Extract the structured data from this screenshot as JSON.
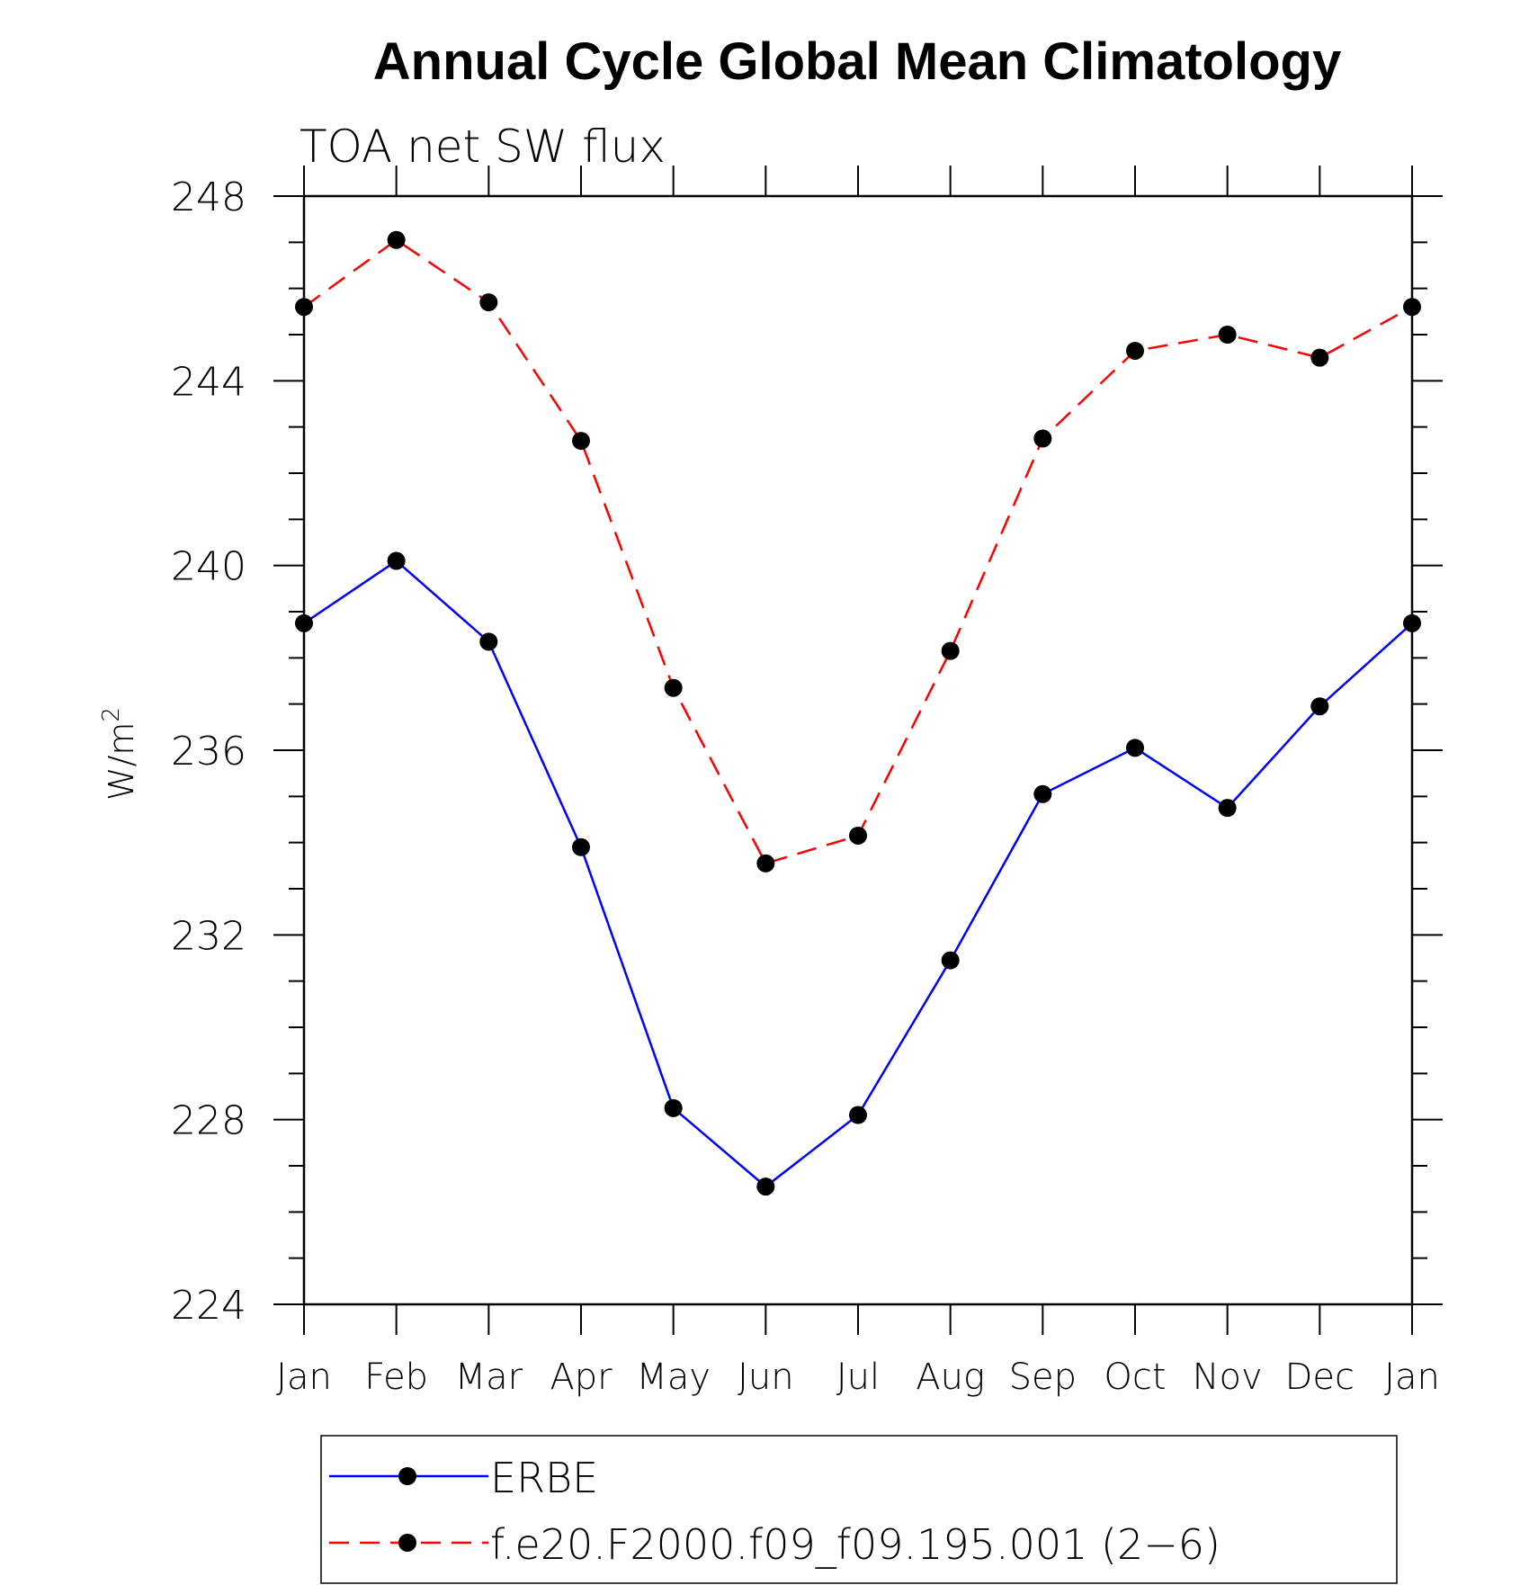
{
  "chart_data": {
    "type": "line",
    "title": "Annual Cycle Global Mean Climatology",
    "subtitle": "TOA net SW flux",
    "ylabel": "W/m",
    "ylabel_superscript": "2",
    "xlabel": "",
    "categories": [
      "Jan",
      "Feb",
      "Mar",
      "Apr",
      "May",
      "Jun",
      "Jul",
      "Aug",
      "Sep",
      "Oct",
      "Nov",
      "Dec",
      "Jan"
    ],
    "ylim": [
      224,
      248
    ],
    "yticks": [
      224,
      228,
      232,
      236,
      240,
      244,
      248
    ],
    "grid": false,
    "legend_position": "bottom",
    "series": [
      {
        "name": "ERBE",
        "color": "#0000ff",
        "line_style": "solid",
        "marker": "filled-circle",
        "values": [
          238.75,
          240.1,
          238.35,
          233.9,
          228.25,
          226.55,
          228.1,
          231.45,
          235.05,
          236.05,
          234.75,
          236.95,
          238.75
        ]
      },
      {
        "name": "f.e20.F2000.f09_f09.195.001 (2−6)",
        "color": "#ff0000",
        "line_style": "dashed",
        "marker": "filled-circle",
        "values": [
          245.6,
          247.05,
          245.7,
          242.7,
          237.35,
          233.55,
          234.15,
          238.15,
          242.75,
          244.65,
          245.0,
          244.5,
          245.6
        ]
      }
    ]
  }
}
